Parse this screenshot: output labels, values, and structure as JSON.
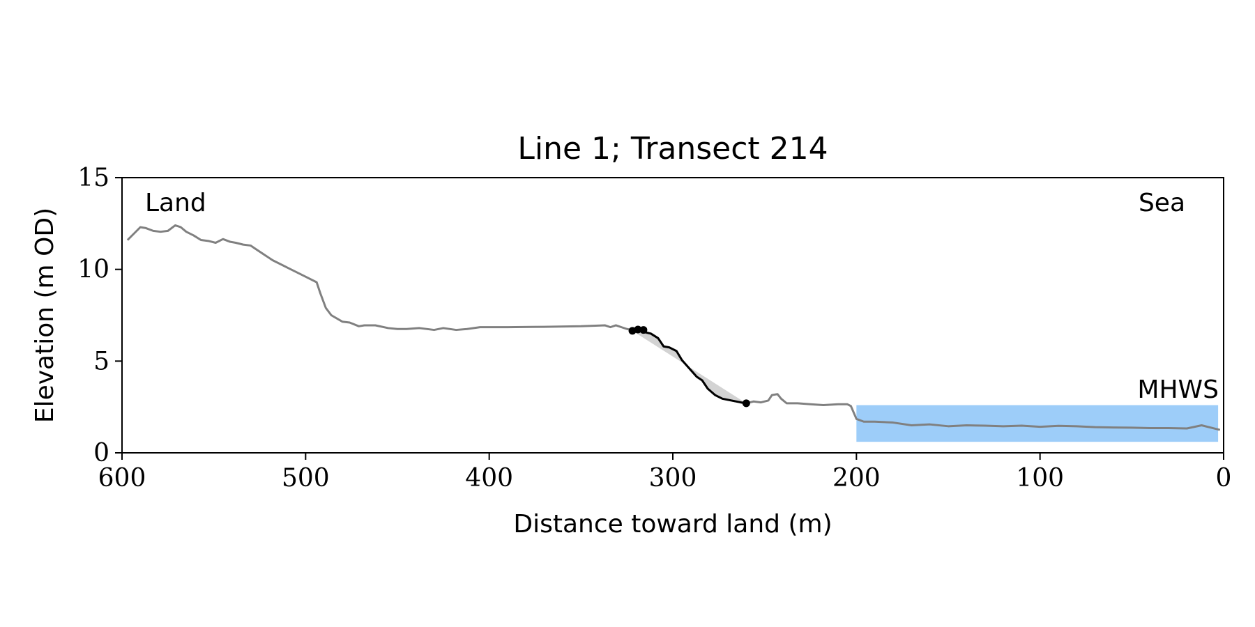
{
  "chart_data": {
    "type": "line",
    "title": "Line 1; Transect 214",
    "xlabel": "Distance toward land (m)",
    "ylabel": "Elevation (m OD)",
    "xlim": [
      600,
      0
    ],
    "ylim": [
      0,
      15
    ],
    "x_reversed": true,
    "xticks": [
      600,
      500,
      400,
      300,
      200,
      100,
      0
    ],
    "yticks": [
      0,
      5,
      10,
      15
    ],
    "grid": false,
    "annotations": {
      "left": "Land",
      "right": "Sea",
      "mhws_label": "MHWS"
    },
    "mhws": {
      "level": 2.6,
      "x_range": [
        200,
        3
      ]
    },
    "colors": {
      "profile": "#808080",
      "highlight": "#000000",
      "shade": "#d3d3d3",
      "mhws": "#9dcdf9",
      "mhws_text": "#6a9cc9"
    },
    "profile": {
      "x": [
        597,
        593,
        590,
        587,
        583,
        579,
        575,
        571,
        568,
        565,
        561,
        557,
        553,
        549,
        545,
        541,
        538,
        534,
        530,
        527,
        524,
        518,
        510,
        500,
        494,
        492,
        489,
        486,
        480,
        476,
        471,
        468,
        462,
        455,
        450,
        445,
        438,
        430,
        425,
        418,
        412,
        405,
        398,
        390,
        370,
        350,
        337,
        334,
        331,
        328,
        325,
        322,
        318,
        315,
        312,
        308,
        305,
        302,
        298,
        295,
        291,
        287,
        284,
        281,
        277,
        273,
        268,
        263,
        260,
        256,
        252,
        248,
        246,
        243,
        241,
        238,
        232,
        225,
        218,
        210,
        205,
        203,
        200,
        196,
        190,
        180,
        170,
        160,
        150,
        140,
        130,
        120,
        110,
        100,
        90,
        80,
        70,
        60,
        50,
        40,
        30,
        20,
        12,
        6,
        2
      ],
      "y": [
        11.6,
        12.0,
        12.3,
        12.25,
        12.1,
        12.05,
        12.1,
        12.4,
        12.3,
        12.05,
        11.85,
        11.6,
        11.55,
        11.45,
        11.65,
        11.5,
        11.45,
        11.35,
        11.3,
        11.1,
        10.9,
        10.5,
        10.1,
        9.6,
        9.3,
        8.7,
        7.9,
        7.5,
        7.15,
        7.1,
        6.9,
        6.95,
        6.95,
        6.8,
        6.75,
        6.75,
        6.8,
        6.7,
        6.8,
        6.7,
        6.75,
        6.85,
        6.85,
        6.85,
        6.87,
        6.9,
        6.95,
        6.85,
        6.95,
        6.85,
        6.75,
        6.7,
        6.65,
        6.55,
        6.5,
        6.25,
        5.8,
        5.75,
        5.55,
        5.05,
        4.6,
        4.15,
        3.95,
        3.5,
        3.15,
        2.95,
        2.85,
        2.75,
        2.7,
        2.8,
        2.75,
        2.85,
        3.15,
        3.2,
        2.95,
        2.7,
        2.7,
        2.65,
        2.6,
        2.65,
        2.65,
        2.55,
        1.85,
        1.7,
        1.7,
        1.65,
        1.5,
        1.55,
        1.45,
        1.5,
        1.48,
        1.45,
        1.48,
        1.42,
        1.47,
        1.45,
        1.4,
        1.38,
        1.37,
        1.35,
        1.35,
        1.33,
        1.5,
        1.35,
        1.25
      ]
    },
    "highlight": {
      "x": [
        323,
        319,
        316,
        312,
        308,
        305,
        302,
        298,
        295,
        291,
        287,
        284,
        281,
        277,
        273,
        268,
        263,
        260
      ],
      "y": [
        6.7,
        6.72,
        6.6,
        6.5,
        6.25,
        5.8,
        5.75,
        5.55,
        5.05,
        4.6,
        4.15,
        3.95,
        3.5,
        3.15,
        2.95,
        2.85,
        2.75,
        2.7
      ],
      "points": [
        {
          "x": 322,
          "y": 6.65
        },
        {
          "x": 319,
          "y": 6.72
        },
        {
          "x": 316,
          "y": 6.7
        },
        {
          "x": 260,
          "y": 2.7
        }
      ]
    },
    "shade_region": {
      "x": [
        322,
        260
      ],
      "y": [
        6.65,
        2.7
      ]
    }
  }
}
